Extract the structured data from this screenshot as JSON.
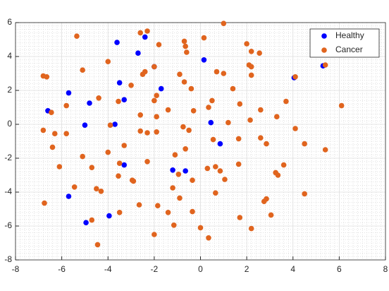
{
  "chart_data": {
    "type": "scatter",
    "xlim": [
      -8,
      8
    ],
    "xticks": [
      -8,
      -6,
      -4,
      -2,
      0,
      2,
      4,
      6,
      8
    ],
    "ylim": [
      -8,
      6
    ],
    "yticks": [
      -8,
      -6,
      -4,
      -2,
      0,
      2,
      4,
      6
    ],
    "grid": true,
    "minor_grid": true,
    "legend": "northeast",
    "series": [
      {
        "name": "Healthy",
        "color": "#0000ff",
        "x": [
          -3.61,
          -2.4,
          -2.7,
          -2.0,
          0.15,
          -3.5,
          -3.3,
          -1.7,
          -5.7,
          -4.8,
          -6.6,
          -5.0,
          -3.7,
          0.45,
          0.85,
          -3.3,
          -1.2,
          -0.65,
          -5.7,
          -3.95,
          -4.95,
          4.05,
          5.3
        ],
        "y": [
          4.83,
          5.15,
          4.2,
          3.4,
          3.8,
          2.45,
          1.45,
          2.1,
          1.85,
          1.25,
          0.8,
          -0.05,
          0.0,
          0.1,
          -1.15,
          -2.4,
          -2.7,
          -2.75,
          -4.25,
          -5.4,
          -5.8,
          2.75,
          3.45
        ]
      },
      {
        "name": "Cancer",
        "color": "#e0641e",
        "x": [
          -5.35,
          -2.6,
          -2.3,
          -2.0,
          -1.8,
          -0.7,
          -0.65,
          -0.6,
          0.15,
          1.0,
          2.0,
          2.2,
          2.55,
          2.2,
          2.1,
          2.2,
          5.4,
          4.1,
          -4.0,
          -2.5,
          -2.4,
          -5.1,
          -6.8,
          -6.65,
          -0.9,
          -0.7,
          -0.4,
          0.7,
          1.0,
          -3.0,
          -1.9,
          -2.0,
          1.4,
          0.5,
          1.7,
          3.7,
          -3.55,
          -4.4,
          -5.8,
          6.1,
          0.35,
          -2.6,
          -1.9,
          -1.4,
          -0.3,
          2.6,
          3.3,
          2.15,
          1.2,
          -6.45,
          -3.9,
          -0.75,
          -0.5,
          4.1,
          -6.8,
          -6.3,
          -5.8,
          -2.6,
          -2.3,
          -1.9,
          -3.3,
          0.55,
          1.65,
          2.85,
          2.6,
          4.5,
          5.4,
          -6.4,
          -6.1,
          -5.1,
          -4.0,
          -0.65,
          -1.1,
          -2.3,
          -3.5,
          -4.7,
          0.3,
          0.65,
          0.85,
          1.65,
          3.6,
          -0.95,
          -3.55,
          -2.9,
          -2.95,
          -1.2,
          -0.35,
          1.05,
          3.25,
          3.35,
          -5.45,
          -4.5,
          -4.3,
          0.65,
          4.5,
          -6.75,
          -2.65,
          -1.85,
          -0.9,
          1.7,
          2.85,
          2.75,
          -3.5,
          -1.4,
          -0.35,
          3.05,
          -4.7,
          -1.15,
          -2.0,
          0.0,
          2.2,
          0.35,
          -4.45
        ],
        "y": [
          5.2,
          5.4,
          5.5,
          3.4,
          4.7,
          4.9,
          4.6,
          4.25,
          5.1,
          5.95,
          4.75,
          4.3,
          4.2,
          3.4,
          3.5,
          2.9,
          3.5,
          2.8,
          3.7,
          2.95,
          3.1,
          3.2,
          2.85,
          2.8,
          2.95,
          2.5,
          2.1,
          3.1,
          3.0,
          2.3,
          1.7,
          1.4,
          2.1,
          1.4,
          1.2,
          1.35,
          1.35,
          1.55,
          1.1,
          1.1,
          1.0,
          0.55,
          0.45,
          0.85,
          0.8,
          0.85,
          0.45,
          0.25,
          0.1,
          0.7,
          -0.05,
          -0.15,
          -0.35,
          -0.25,
          -0.35,
          -0.55,
          -0.55,
          -0.4,
          -0.5,
          -0.45,
          -1.25,
          -0.9,
          -0.85,
          -1.15,
          -0.8,
          -1.15,
          -1.5,
          -1.35,
          -2.5,
          -1.9,
          -1.65,
          -1.45,
          -1.8,
          -2.2,
          -2.3,
          -2.55,
          -2.6,
          -2.5,
          -2.75,
          -2.35,
          -2.4,
          -2.95,
          -3.05,
          -3.35,
          -3.3,
          -3.75,
          -3.3,
          -3.25,
          -2.85,
          -3.0,
          -3.7,
          -3.8,
          -3.95,
          -4.05,
          -4.1,
          -4.65,
          -4.75,
          -4.8,
          -4.35,
          -5.5,
          -4.4,
          -4.55,
          -5.2,
          -5.2,
          -5.15,
          -5.35,
          -5.65,
          -5.95,
          -6.5,
          -6.1,
          -6.15,
          -6.7,
          -7.1
        ]
      }
    ]
  }
}
